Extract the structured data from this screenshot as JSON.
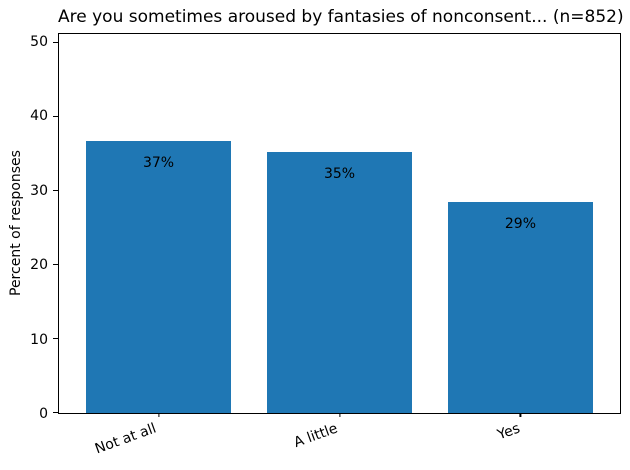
{
  "chart_data": {
    "type": "bar",
    "title": "Are you sometimes aroused by fantasies of nonconsent... (n=852)",
    "categories": [
      "Not at all",
      "A little",
      "Yes"
    ],
    "values": [
      36.7,
      35.2,
      28.5
    ],
    "bar_labels": [
      "37%",
      "35%",
      "29%"
    ],
    "xlabel": "",
    "ylabel": "Percent of responses",
    "ylim": [
      0,
      51.2
    ],
    "yticks": [
      0,
      10,
      20,
      30,
      40,
      50
    ],
    "grid": false,
    "legend_position": "none",
    "bar_color": "#1f77b4",
    "text_color": "#000000",
    "background_color": "#ffffff",
    "x_tick_rotation_deg": 20
  }
}
